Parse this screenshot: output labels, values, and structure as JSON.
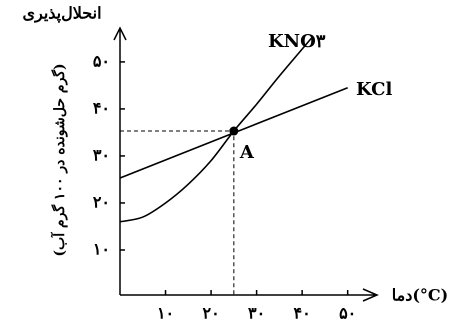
{
  "chart_data": {
    "type": "line",
    "ylabel": "انحلال‌پذیری",
    "ylabel_unit": "(گرم حل‌شونده در ۱۰۰ گرم آب)",
    "xlabel": "دما(°C)",
    "xlim": [
      0,
      56
    ],
    "ylim": [
      0,
      57
    ],
    "xticks": [
      {
        "value": 10,
        "label": "۱۰"
      },
      {
        "value": 20,
        "label": "۲۰"
      },
      {
        "value": 30,
        "label": "۳۰"
      },
      {
        "value": 40,
        "label": "۴۰"
      },
      {
        "value": 50,
        "label": "۵۰"
      }
    ],
    "yticks": [
      {
        "value": 10,
        "label": "۱۰"
      },
      {
        "value": 20,
        "label": "۲۰"
      },
      {
        "value": 30,
        "label": "۳۰"
      },
      {
        "value": 40,
        "label": "۴۰"
      },
      {
        "value": 50,
        "label": "۵۰"
      }
    ],
    "series": [
      {
        "name": "KNO۳",
        "color": "#000",
        "x": [
          0,
          5,
          10,
          15,
          20,
          25,
          30,
          35,
          42
        ],
        "values": [
          16,
          17,
          20,
          24,
          29,
          35.3,
          41,
          47,
          55
        ]
      },
      {
        "name": "KCl",
        "color": "#000",
        "x": [
          0,
          50
        ],
        "values": [
          25.3,
          44.5
        ]
      }
    ],
    "point": {
      "x": 25,
      "y": 35.3,
      "label": "A"
    }
  }
}
